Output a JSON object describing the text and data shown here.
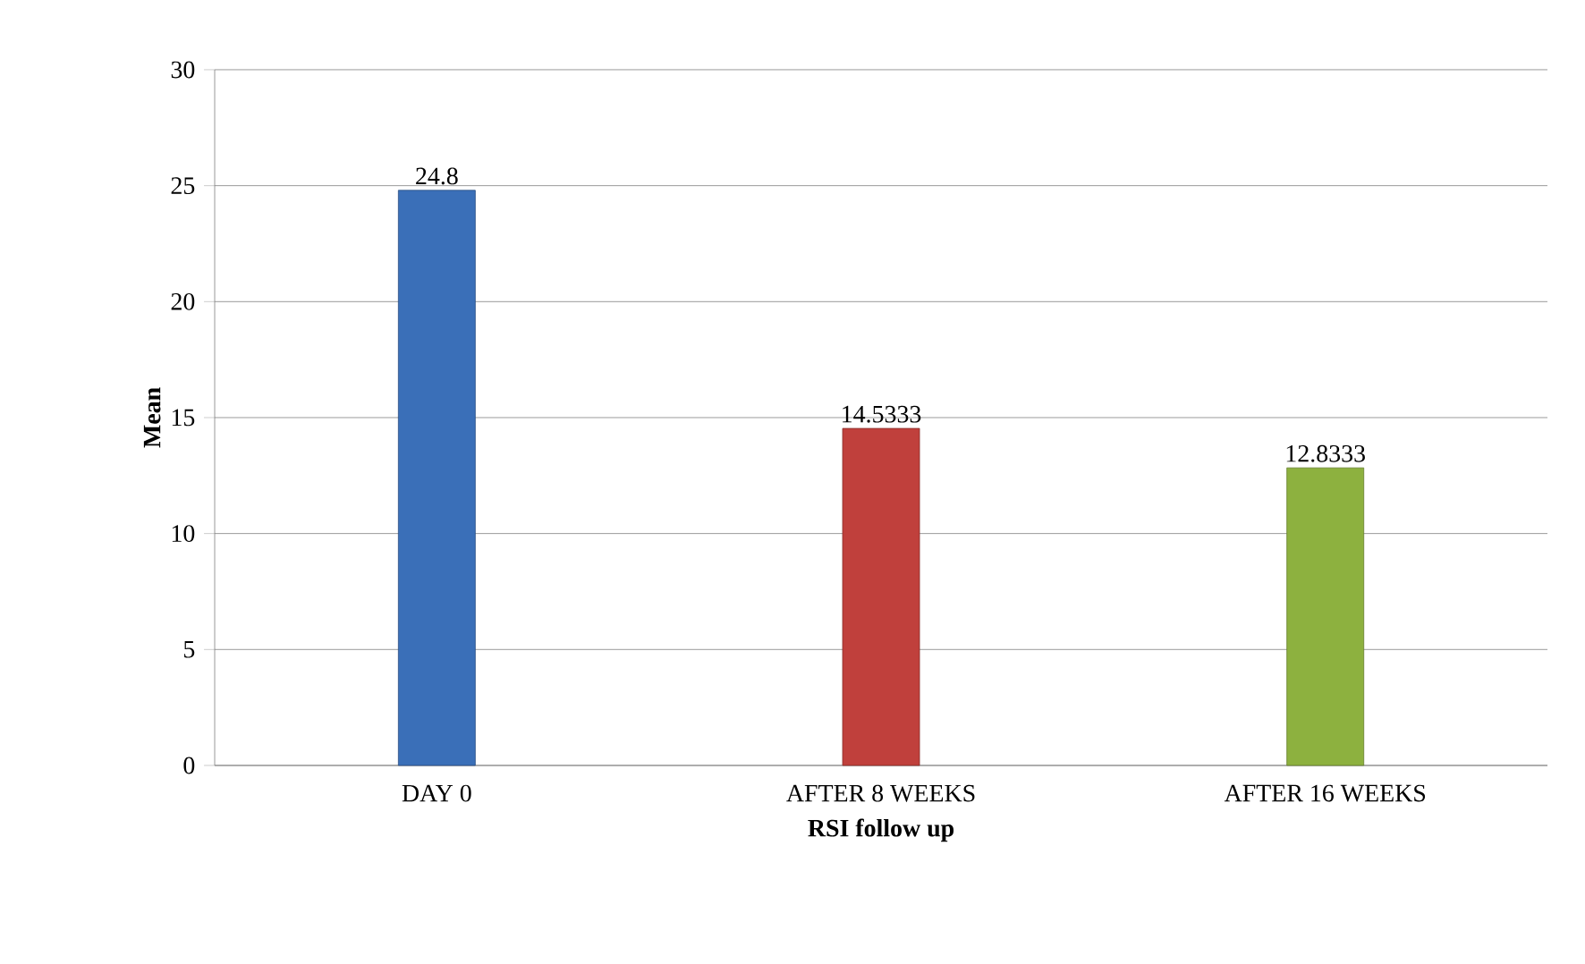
{
  "chart_data": {
    "type": "bar",
    "categories": [
      "DAY 0",
      "AFTER 8 WEEKS",
      "AFTER 16 WEEKS"
    ],
    "values": [
      24.8,
      14.5333,
      12.8333
    ],
    "colors": [
      "#3a6fb8",
      "#c0403c",
      "#8db13f"
    ],
    "xlabel": "RSI  follow up",
    "ylabel": "Mean",
    "ylim": [
      0,
      30
    ],
    "yticks": [
      0,
      5,
      10,
      15,
      20,
      25,
      30
    ],
    "grid": "y",
    "data_labels": true
  }
}
